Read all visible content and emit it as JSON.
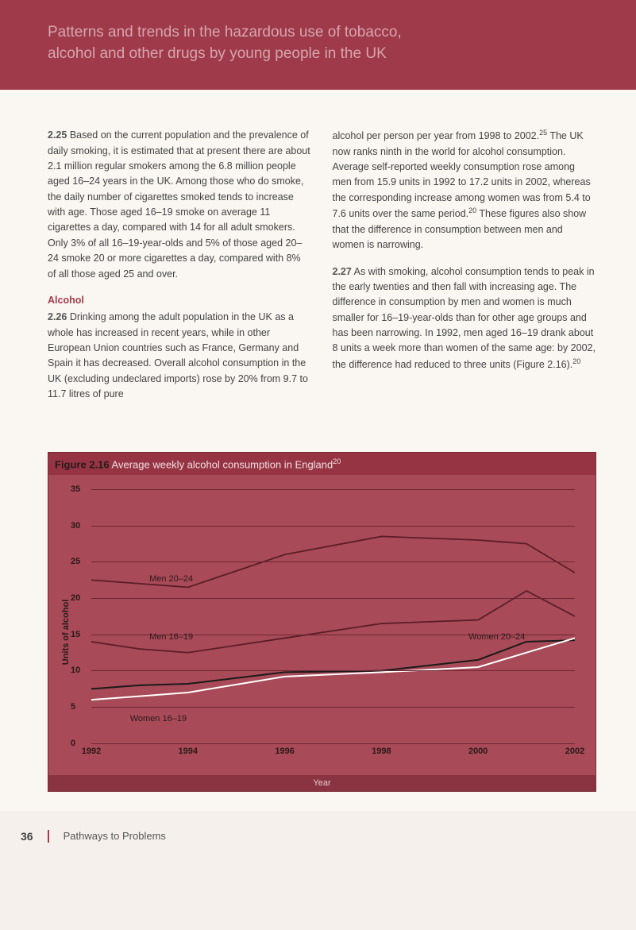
{
  "header": {
    "line1": "Patterns and trends in the hazardous use of tobacco,",
    "line2": "alcohol and other drugs by young people in the UK"
  },
  "body": {
    "p1_num": "2.25",
    "p1": " Based on the current population and the prevalence of daily smoking, it is estimated that at present there are about 2.1 million regular smokers among the 6.8 million people aged 16–24 years in the UK. Among those who do smoke, the daily number of cigarettes smoked tends to increase with age. Those aged 16–19 smoke on average 11 cigarettes a day, compared with 14 for all adult smokers. Only 3% of all 16–19-year-olds and 5% of those aged 20–24 smoke 20 or more cigarettes a day, compared with 8% of all those aged 25 and over.",
    "subhead": "Alcohol",
    "p2_num": "2.26",
    "p2": " Drinking among the adult population in the UK as a whole has increased in recent years, while in other European Union countries such as France, Germany and Spain it has decreased. Overall alcohol consumption in the UK (excluding undeclared imports) rose by 20% from 9.7 to 11.7 litres of pure",
    "p3a": "alcohol per person per year from 1998 to 2002.",
    "p3_sup1": "25",
    "p3b": " The UK now ranks ninth in the world for alcohol consumption. Average self-reported weekly consumption rose among men from 15.9 units in 1992 to 17.2 units in 2002, whereas the corresponding increase among women was from 5.4 to 7.6 units over the same period.",
    "p3_sup2": "20",
    "p3c": " These figures also show that the difference in consumption between men and women is narrowing.",
    "p4_num": "2.27",
    "p4a": " As with smoking, alcohol consumption tends to peak in the early twenties and then fall with increasing age. The difference in consumption by men and women is much smaller for 16–19-year-olds than for other age groups and has been narrowing. In 1992, men aged 16–19 drank about 8 units a week more than women of the same age: by 2002, the difference had reduced to three units (Figure 2.16).",
    "p4_sup": "20"
  },
  "figure": {
    "num": "Figure 2.16",
    "title": " Average weekly alcohol consumption in England",
    "title_sup": "20",
    "yaxis": "Units of alcohol",
    "xaxis": "Year",
    "ylim": [
      0,
      35
    ],
    "ytick_step": 5,
    "yticks": [
      0,
      5,
      10,
      15,
      20,
      25,
      30,
      35
    ],
    "xticks": [
      1992,
      1994,
      1996,
      1998,
      2000,
      2002
    ],
    "background_color": "#a94a58",
    "grid_color": "#6a2632",
    "series": {
      "men_20_24": {
        "label": "Men 20–24",
        "color": "#5a1e28",
        "width": 1.8,
        "points": [
          [
            1992,
            22.5
          ],
          [
            1993,
            22.0
          ],
          [
            1994,
            21.5
          ],
          [
            1996,
            26.0
          ],
          [
            1998,
            28.5
          ],
          [
            2000,
            28.0
          ],
          [
            2001,
            27.5
          ],
          [
            2002,
            23.5
          ]
        ]
      },
      "men_16_19": {
        "label": "Men 16–19",
        "color": "#5a1e28",
        "width": 1.8,
        "points": [
          [
            1992,
            14.0
          ],
          [
            1993,
            13.0
          ],
          [
            1994,
            12.5
          ],
          [
            1996,
            14.5
          ],
          [
            1998,
            16.5
          ],
          [
            2000,
            17.0
          ],
          [
            2001,
            21.0
          ],
          [
            2002,
            17.5
          ]
        ]
      },
      "women_20_24": {
        "label": "Women 20–24",
        "color": "#1a1a1a",
        "width": 2.0,
        "points": [
          [
            1992,
            7.5
          ],
          [
            1993,
            8.0
          ],
          [
            1994,
            8.2
          ],
          [
            1996,
            9.8
          ],
          [
            1998,
            10.0
          ],
          [
            2000,
            11.5
          ],
          [
            2001,
            14.0
          ],
          [
            2002,
            14.2
          ]
        ]
      },
      "women_16_19": {
        "label": "Women 16–19",
        "color": "#ffffff",
        "width": 2.0,
        "points": [
          [
            1992,
            6.0
          ],
          [
            1993,
            6.5
          ],
          [
            1994,
            7.0
          ],
          [
            1996,
            9.2
          ],
          [
            1998,
            9.8
          ],
          [
            2000,
            10.5
          ],
          [
            2001,
            12.5
          ],
          [
            2002,
            14.5
          ]
        ]
      }
    },
    "series_label_pos": {
      "men_20_24": {
        "x": 1993.2,
        "y": 23.3
      },
      "men_16_19": {
        "x": 1993.2,
        "y": 15.3
      },
      "women_20_24": {
        "x": 1999.8,
        "y": 15.3
      },
      "women_16_19": {
        "x": 1992.8,
        "y": 4.0
      }
    }
  },
  "footer": {
    "page": "36",
    "running": "Pathways to Problems"
  }
}
